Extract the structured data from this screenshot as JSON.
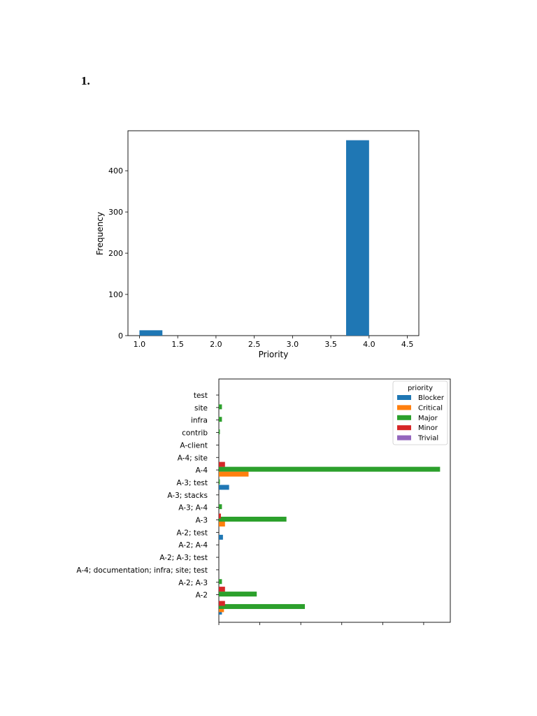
{
  "page": {
    "heading": "1."
  },
  "chart_data": [
    {
      "type": "bar",
      "title": "",
      "xlabel": "Priority",
      "ylabel": "Frequency",
      "xlim": [
        0.85,
        4.65
      ],
      "ylim": [
        0,
        497
      ],
      "xticks": [
        "1.0",
        "1.5",
        "2.0",
        "2.5",
        "3.0",
        "3.5",
        "4.0",
        "4.5"
      ],
      "yticks": [
        "0",
        "100",
        "200",
        "300",
        "400"
      ],
      "bins": [
        {
          "x0": 1.0,
          "x1": 1.3,
          "value": 13
        },
        {
          "x0": 1.3,
          "x1": 1.6,
          "value": 0
        },
        {
          "x0": 1.6,
          "x1": 1.9,
          "value": 0
        },
        {
          "x0": 1.9,
          "x1": 2.2,
          "value": 0
        },
        {
          "x0": 2.2,
          "x1": 2.5,
          "value": 0
        },
        {
          "x0": 2.5,
          "x1": 2.8,
          "value": 0
        },
        {
          "x0": 2.8,
          "x1": 3.1,
          "value": 0
        },
        {
          "x0": 3.1,
          "x1": 3.4,
          "value": 0
        },
        {
          "x0": 3.4,
          "x1": 3.7,
          "value": 0
        },
        {
          "x0": 3.7,
          "x1": 4.0,
          "value": 474
        }
      ],
      "color": "#1f77b4"
    },
    {
      "type": "bar",
      "orientation": "horizontal",
      "categories": [
        "test",
        "site",
        "infra",
        "contrib",
        "A-client",
        "A-4; site",
        "A-4",
        "A-3; test",
        "A-3; stacks",
        "A-3; A-4",
        "A-3",
        "A-2; test",
        "A-2; A-4",
        "A-2; A-3; test",
        "A-4; documentation; infra; site; test",
        "A-2; A-3",
        "A-2",
        ""
      ],
      "xlim": [
        0,
        113
      ],
      "legend": {
        "title": "priority",
        "position": "upper right"
      },
      "series": [
        {
          "name": "Blocker",
          "color": "#1f77b4",
          "values": [
            0,
            0,
            0,
            0,
            0,
            0,
            0,
            5,
            0,
            0,
            0,
            2,
            0,
            0,
            0,
            0,
            0,
            1.5
          ]
        },
        {
          "name": "Critical",
          "color": "#ff7f0e",
          "values": [
            0,
            0,
            0,
            0,
            0,
            0,
            0,
            0,
            0,
            0,
            0,
            0,
            0,
            0,
            0,
            0,
            0,
            2.5
          ]
        },
        {
          "name": "Major",
          "color": "#2ca02c",
          "values": [
            0,
            1.5,
            1.5,
            0.5,
            0,
            0,
            108,
            0.5,
            0,
            1.5,
            33,
            0,
            0,
            0,
            0,
            1.5,
            18.5,
            42
          ]
        },
        {
          "name": "Minor",
          "color": "#d62728",
          "values": [
            0,
            0,
            0,
            0,
            0,
            0,
            0,
            0,
            0,
            0,
            1,
            0,
            0,
            0,
            0,
            0,
            0,
            3
          ]
        },
        {
          "name": "Trivial",
          "color": "#9467bd",
          "values": [
            0,
            0,
            0,
            0,
            0,
            0,
            0,
            0,
            0,
            0,
            0,
            0,
            0,
            0,
            0,
            0,
            0,
            0
          ]
        }
      ],
      "offset_series": [
        {
          "name": "Critical",
          "color": "#ff7f0e",
          "categories": [
            "A-4",
            "A-3"
          ],
          "values": [
            14.5,
            3
          ]
        },
        {
          "name": "Minor",
          "color": "#d62728",
          "categories": [
            "A-4",
            "A-2"
          ],
          "values": [
            3,
            3
          ]
        }
      ]
    }
  ]
}
